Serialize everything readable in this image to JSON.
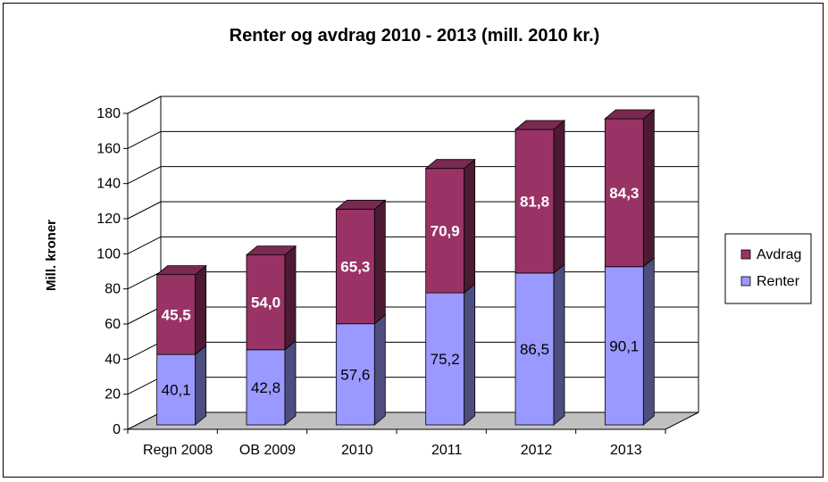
{
  "chart_data": {
    "type": "bar",
    "stacked": true,
    "title": "Renter og avdrag 2010 - 2013 (mill. 2010 kr.)",
    "ylabel": "Mill. kroner",
    "xlabel": "",
    "ylim": [
      0,
      180
    ],
    "yticks": [
      "0",
      "20",
      "40",
      "60",
      "80",
      "100",
      "120",
      "140",
      "160",
      "180"
    ],
    "grid": true,
    "legend_position": "right",
    "categories": [
      "Regn 2008",
      "OB 2009",
      "2010",
      "2011",
      "2012",
      "2013"
    ],
    "series": [
      {
        "name": "Renter",
        "values": [
          40.1,
          42.8,
          57.6,
          75.2,
          86.5,
          90.1
        ],
        "labels": [
          "40,1",
          "42,8",
          "57,6",
          "75,2",
          "86,5",
          "90,1"
        ],
        "color": "#9999ff",
        "side_color": "#4d4d80",
        "top_color": "#7a7acc"
      },
      {
        "name": "Avdrag",
        "values": [
          45.5,
          54.0,
          65.3,
          70.9,
          81.8,
          84.3
        ],
        "labels": [
          "45,5",
          "54,0",
          "65,3",
          "70,9",
          "81,8",
          "84,3"
        ],
        "color": "#993366",
        "side_color": "#4d1a33",
        "top_color": "#7a2952"
      }
    ],
    "floor_color": "#c0c0c0"
  }
}
